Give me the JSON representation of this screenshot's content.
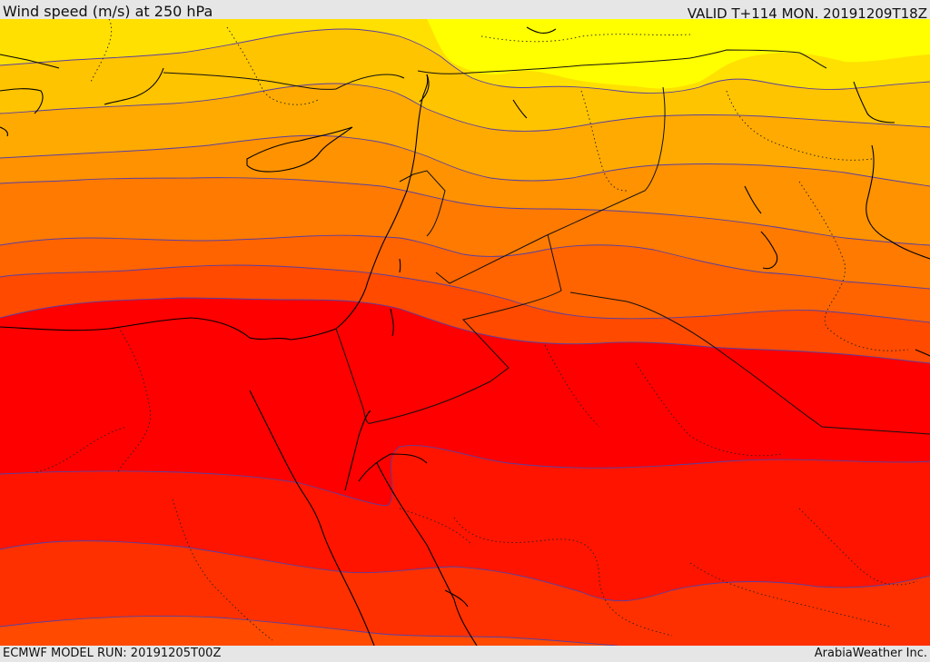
{
  "header": {
    "title": "Wind speed (m/s) at 250 hPa",
    "valid_time": "VALID T+114 MON. 20191209T18Z"
  },
  "footer": {
    "model_run": "ECMWF MODEL RUN: 20191205T00Z",
    "credit": "ArabiaWeather Inc."
  },
  "colors": {
    "band_1": "#ffff00",
    "band_2": "#ffe000",
    "band_3": "#ffc400",
    "band_4": "#ffaa00",
    "band_5": "#ff9200",
    "band_6": "#ff7a00",
    "band_7": "#ff6400",
    "band_8": "#ff4a00",
    "band_9": "#ff3000",
    "band_10": "#ff1400",
    "band_11": "#ff0000",
    "coastline": "#000000",
    "border": "#111111",
    "contour": "#5a3fa0"
  }
}
